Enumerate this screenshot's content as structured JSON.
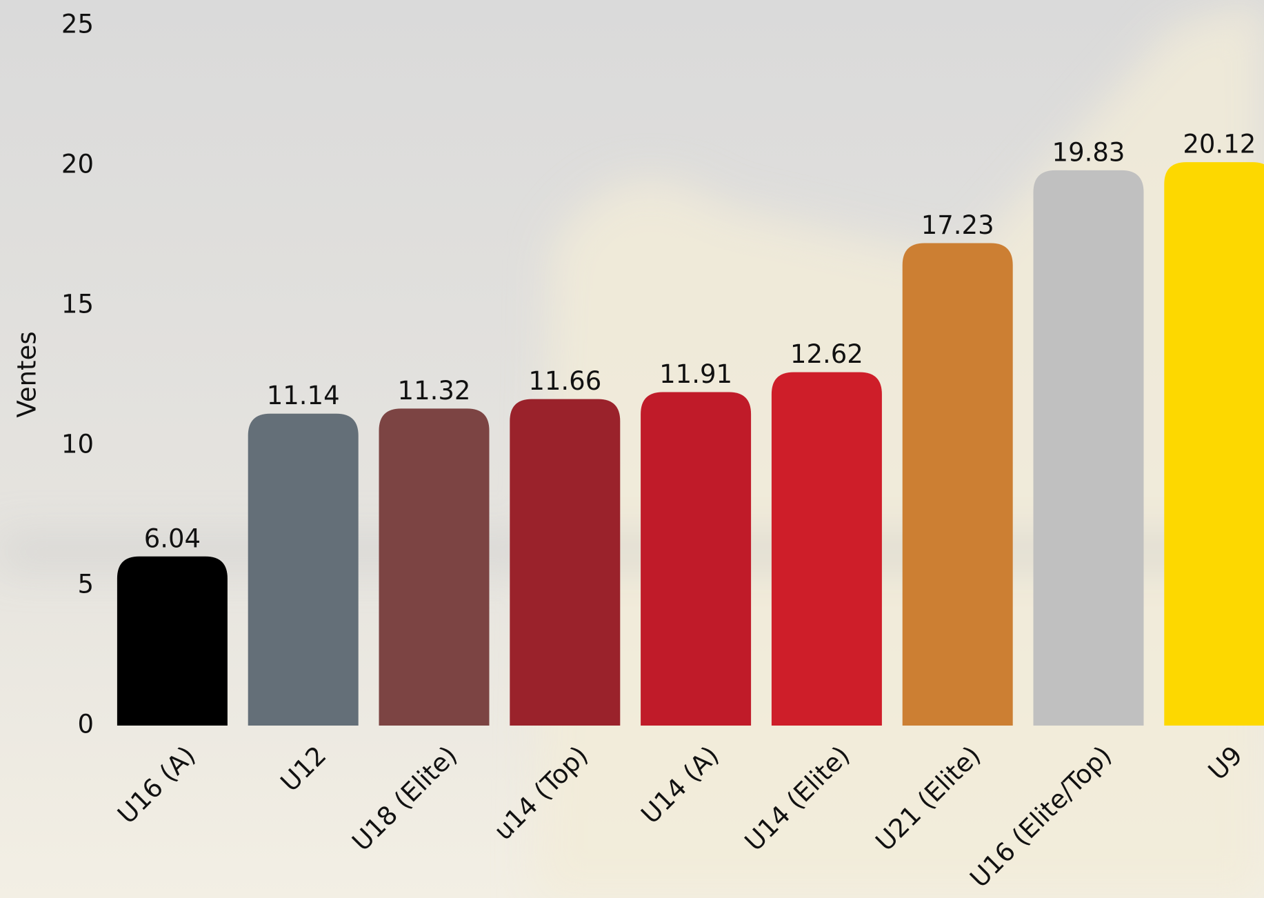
{
  "chart_data": {
    "type": "bar",
    "y_label": "Ventes",
    "categories": [
      "U16 (A)",
      "U12",
      "U18 (Elite)",
      "u14 (Top)",
      "U14 (A)",
      "U14 (Elite)",
      "U21 (Elite)",
      "U16 (Elite/Top)",
      "U9"
    ],
    "values": [
      6.04,
      11.14,
      11.32,
      11.66,
      11.91,
      12.62,
      17.23,
      19.83,
      20.12
    ],
    "colors": [
      "#000000",
      "#646f78",
      "#7c4443",
      "#9a222b",
      "#c01b29",
      "#ce1e29",
      "#cc7f33",
      "#c0c0c0",
      "#fdd800"
    ],
    "ylim": [
      0,
      25
    ],
    "yticks": [
      0,
      5,
      10,
      15,
      20,
      25
    ],
    "grid": false
  }
}
